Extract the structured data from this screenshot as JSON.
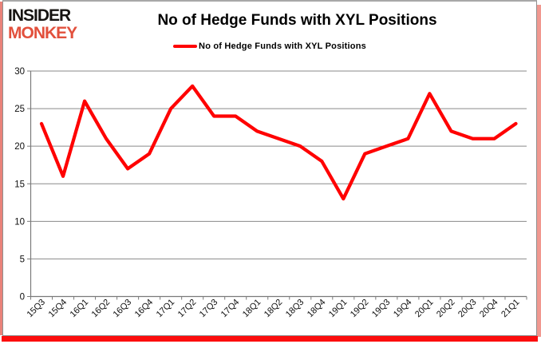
{
  "logo": {
    "line1": "INSIDER",
    "line2": "MONKEY"
  },
  "title": "No of Hedge Funds with XYL Positions",
  "legend": {
    "label": "No of Hedge Funds with XYL Positions",
    "swatch_color": "#ff0000"
  },
  "colors": {
    "line": "#ff0000",
    "gridline": "#8a8a8a",
    "axis": "#7a7a7a",
    "tick": "#7a7a7a",
    "label": "#0d0d0d",
    "title": "#000000",
    "logo_insider": "#171412",
    "logo_monkey": "#e2503c",
    "frame_gray": "#8f8f8f",
    "edge_left": "#e98279",
    "edge_right": "#f19890",
    "edge_bottom": "#fc0d0d",
    "background": "#ffffff"
  },
  "chart_data": {
    "type": "line",
    "title": "No of Hedge Funds with XYL Positions",
    "series_name": "No of Hedge Funds with XYL Positions",
    "categories": [
      "15Q3",
      "15Q4",
      "16Q1",
      "16Q2",
      "16Q3",
      "16Q4",
      "17Q1",
      "17Q2",
      "17Q3",
      "17Q4",
      "18Q1",
      "18Q2",
      "18Q3",
      "18Q4",
      "19Q1",
      "19Q2",
      "19Q3",
      "19Q4",
      "20Q1",
      "20Q2",
      "20Q3",
      "20Q4",
      "21Q1"
    ],
    "values": [
      23,
      16,
      26,
      21,
      17,
      19,
      25,
      28,
      24,
      24,
      22,
      21,
      20,
      18,
      13,
      19,
      20,
      21,
      27,
      22,
      21,
      21,
      23
    ],
    "xlabel": "",
    "ylabel": "",
    "ylim": [
      0,
      30
    ],
    "ytick_step": 5,
    "yticks": [
      0,
      5,
      10,
      15,
      20,
      25,
      30
    ],
    "grid": true,
    "legend_position": "top-center",
    "line_color": "#ff0000",
    "line_width": 4.25,
    "x_label_rotation": -45
  }
}
